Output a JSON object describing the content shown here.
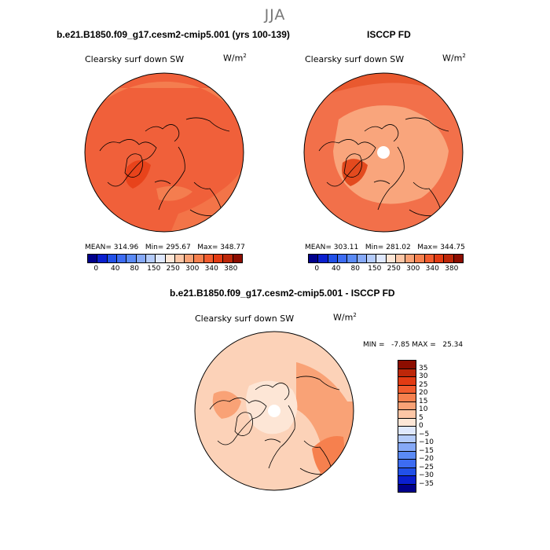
{
  "season": "JJA",
  "panel_model": {
    "case": "b.e21.B1850.f09_g17.cesm2-cmip5.001 (yrs 100-139)",
    "variable": "Clearsky surf down SW",
    "units": "W/m",
    "units_exp": "2",
    "mean": "MEAN= 314.96",
    "min": "Min= 295.67",
    "max": "Max= 348.77"
  },
  "panel_obs": {
    "case": "ISCCP FD",
    "variable": "Clearsky surf down SW",
    "units": "W/m",
    "units_exp": "2",
    "mean": "MEAN= 303.11",
    "min": "Min= 281.02",
    "max": "Max= 344.75"
  },
  "panel_diff": {
    "case": "b.e21.B1850.f09_g17.cesm2-cmip5.001 - ISCCP FD",
    "variable": "Clearsky surf down SW",
    "units": "W/m",
    "units_exp": "2",
    "minmax": "MIN =   -7.85 MAX =   25.34"
  },
  "colorbar_abs": {
    "ticks": [
      "0",
      "40",
      "80",
      "150",
      "250",
      "300",
      "340",
      "380"
    ],
    "colors": [
      "#00008b",
      "#0a1fcf",
      "#2150e8",
      "#3d6cf2",
      "#5a8af5",
      "#86a9f7",
      "#b4cbfa",
      "#dfe8fd",
      "#fde6d6",
      "#fcc6a6",
      "#f9a276",
      "#f6804e",
      "#f25c2e",
      "#e23b13",
      "#bd2709",
      "#8c0d00"
    ]
  },
  "colorbar_diff": {
    "ticks": [
      "35",
      "30",
      "25",
      "20",
      "15",
      "10",
      "5",
      "0",
      "−5",
      "−10",
      "−15",
      "−20",
      "−25",
      "−30",
      "−35"
    ],
    "colors": [
      "#8c0d00",
      "#bd2709",
      "#e23b13",
      "#f25c2e",
      "#f6804e",
      "#f9a276",
      "#fcc6a6",
      "#fde6d6",
      "#dfe8fd",
      "#b4cbfa",
      "#86a9f7",
      "#5a8af5",
      "#3d6cf2",
      "#2150e8",
      "#0a1fcf",
      "#00008b"
    ]
  },
  "map_colors": {
    "model_base": "#f0603a",
    "model_high": "#f47d4f",
    "model_low": "#e8431b",
    "obs_base": "#f2704a",
    "obs_light": "#f9a57c",
    "obs_dark": "#e34a1e",
    "diff_base": "#fcd2b8",
    "diff_mid": "#f9a276",
    "diff_high": "#f6804e",
    "diff_zero": "#fde6d6"
  }
}
